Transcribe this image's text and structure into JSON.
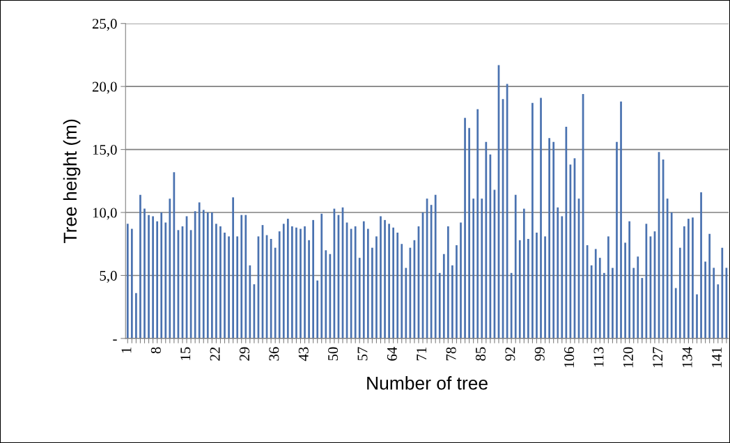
{
  "chart_data": {
    "type": "bar",
    "xlabel": "Number of tree",
    "ylabel": "Tree height (m)",
    "categories": [
      "1",
      null,
      null,
      null,
      null,
      null,
      null,
      "8",
      null,
      null,
      null,
      null,
      null,
      null,
      "15",
      null,
      null,
      null,
      null,
      null,
      null,
      "22",
      null,
      null,
      null,
      null,
      null,
      null,
      "29",
      null,
      null,
      null,
      null,
      null,
      null,
      "36",
      null,
      null,
      null,
      null,
      null,
      null,
      "43",
      null,
      null,
      null,
      null,
      null,
      null,
      "50",
      null,
      null,
      null,
      null,
      null,
      null,
      "57",
      null,
      null,
      null,
      null,
      null,
      null,
      "64",
      null,
      null,
      null,
      null,
      null,
      null,
      "71",
      null,
      null,
      null,
      null,
      null,
      null,
      "78",
      null,
      null,
      null,
      null,
      null,
      null,
      "85",
      null,
      null,
      null,
      null,
      null,
      null,
      "92",
      null,
      null,
      null,
      null,
      null,
      null,
      "99",
      null,
      null,
      null,
      null,
      null,
      null,
      "106",
      null,
      null,
      null,
      null,
      null,
      null,
      "113",
      null,
      null,
      null,
      null,
      null,
      null,
      "120",
      null,
      null,
      null,
      null,
      null,
      null,
      "127",
      null,
      null,
      null,
      null,
      null,
      null,
      "134",
      null,
      null,
      null,
      null,
      null,
      null,
      "141",
      null,
      null
    ],
    "values": [
      9.1,
      8.7,
      3.6,
      11.4,
      10.3,
      9.8,
      9.7,
      9.3,
      10.0,
      9.2,
      11.1,
      13.2,
      8.6,
      8.9,
      9.7,
      8.6,
      10.1,
      10.8,
      10.2,
      10.0,
      10.0,
      9.1,
      8.9,
      8.4,
      8.1,
      11.2,
      8.1,
      9.8,
      9.8,
      5.8,
      4.3,
      8.1,
      9.0,
      8.2,
      7.9,
      7.2,
      8.5,
      9.1,
      9.5,
      8.9,
      8.8,
      8.7,
      8.9,
      7.8,
      9.4,
      4.6,
      9.9,
      7.0,
      6.7,
      10.3,
      9.8,
      10.4,
      9.2,
      8.7,
      8.9,
      6.4,
      9.3,
      8.7,
      7.2,
      8.1,
      9.7,
      9.4,
      9.1,
      8.8,
      8.4,
      7.5,
      5.6,
      7.2,
      7.8,
      8.9,
      10.0,
      11.1,
      10.6,
      11.4,
      5.2,
      6.7,
      8.9,
      5.8,
      7.4,
      9.2,
      17.5,
      16.7,
      11.1,
      18.2,
      11.1,
      15.6,
      14.6,
      11.8,
      21.7,
      19.0,
      20.2,
      5.2,
      11.4,
      7.8,
      10.3,
      7.9,
      18.7,
      8.4,
      19.1,
      8.1,
      15.9,
      15.6,
      10.4,
      9.7,
      16.8,
      13.8,
      14.3,
      11.1,
      19.4,
      7.4,
      5.8,
      7.1,
      6.4,
      5.2,
      8.1,
      5.6,
      15.6,
      18.8,
      7.6,
      9.3,
      5.6,
      6.5,
      4.8,
      9.1,
      8.1,
      8.5,
      14.8,
      14.2,
      11.1,
      10.0,
      4.0,
      7.2,
      8.9,
      9.5,
      9.6,
      3.5,
      11.6,
      6.1,
      8.3,
      5.6,
      4.3,
      7.2,
      5.6
    ],
    "color": "#4a72b0",
    "ylim": [
      0,
      25
    ],
    "yticks": [
      {
        "value": 0,
        "label": "-"
      },
      {
        "value": 5,
        "label": "5,0"
      },
      {
        "value": 10,
        "label": "10,0"
      },
      {
        "value": 15,
        "label": "15,0"
      },
      {
        "value": 20,
        "label": "20,0"
      },
      {
        "value": 25,
        "label": "25,0"
      }
    ],
    "grid": "y"
  }
}
